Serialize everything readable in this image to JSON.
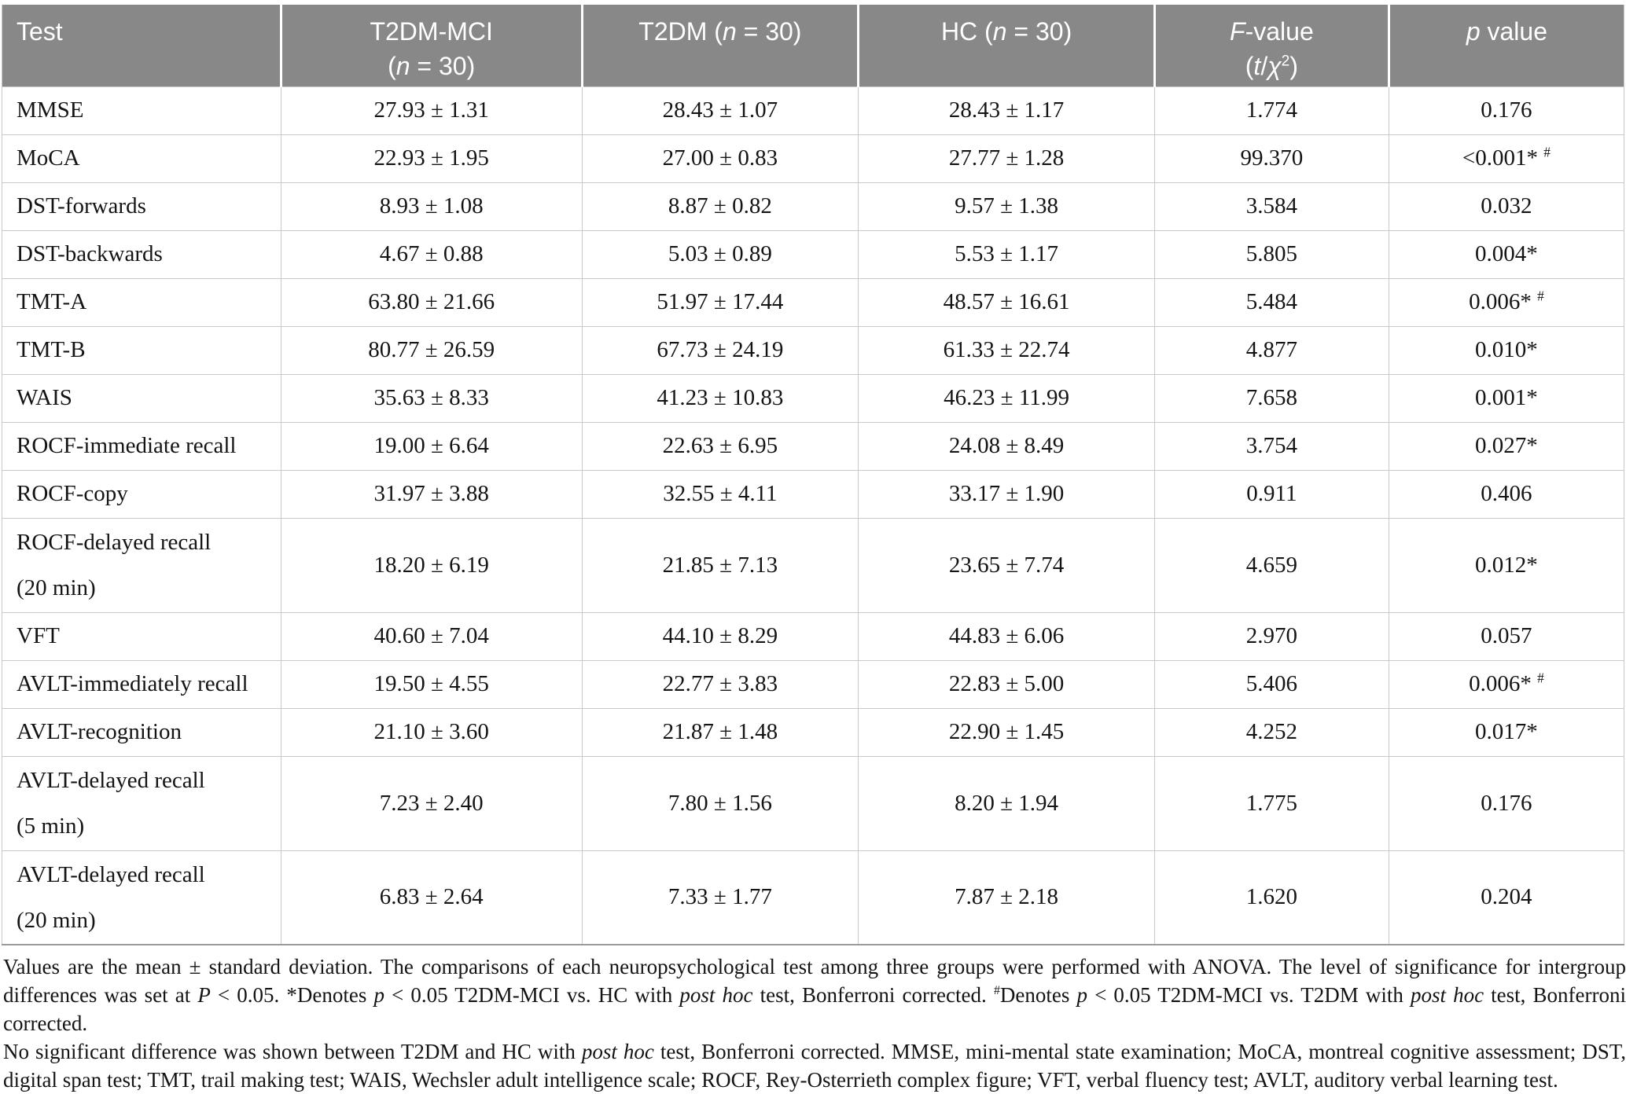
{
  "colors": {
    "header_bg": "#888888",
    "grid_line": "#c9c9c9",
    "header_text": "#ffffff",
    "body_text": "#141414"
  },
  "table": {
    "header": {
      "cells": [
        [
          {
            "t": "Test"
          }
        ],
        [
          {
            "t": "T2DM-MCI"
          },
          {
            "br": true
          },
          {
            "t": "("
          },
          {
            "i": "n"
          },
          {
            "t": " = 30)"
          }
        ],
        [
          {
            "t": "T2DM ("
          },
          {
            "i": "n"
          },
          {
            "t": " = 30)"
          }
        ],
        [
          {
            "t": "HC ("
          },
          {
            "i": "n"
          },
          {
            "t": " = 30)"
          }
        ],
        [
          {
            "i": "F"
          },
          {
            "t": "-value"
          },
          {
            "br": true
          },
          {
            "t": "("
          },
          {
            "i": "t"
          },
          {
            "t": "/"
          },
          {
            "i": "χ"
          },
          {
            "sup": "2"
          },
          {
            "t": ")"
          }
        ],
        [
          {
            "i": "p"
          },
          {
            "t": " value"
          }
        ]
      ]
    },
    "rows": [
      {
        "h": 1,
        "cells": [
          [
            {
              "t": "MMSE"
            }
          ],
          [
            {
              "t": "27.93 ± 1.31"
            }
          ],
          [
            {
              "t": "28.43 ± 1.07"
            }
          ],
          [
            {
              "t": "28.43 ± 1.17"
            }
          ],
          [
            {
              "t": "1.774"
            }
          ],
          [
            {
              "t": "0.176"
            }
          ]
        ]
      },
      {
        "h": 1,
        "cells": [
          [
            {
              "t": "MoCA"
            }
          ],
          [
            {
              "t": "22.93 ± 1.95"
            }
          ],
          [
            {
              "t": "27.00 ± 0.83"
            }
          ],
          [
            {
              "t": "27.77 ± 1.28"
            }
          ],
          [
            {
              "t": "99.370"
            }
          ],
          [
            {
              "t": "<0.001* "
            },
            {
              "sup": "#"
            }
          ]
        ]
      },
      {
        "h": 1,
        "cells": [
          [
            {
              "t": "DST-forwards"
            }
          ],
          [
            {
              "t": "8.93 ± 1.08"
            }
          ],
          [
            {
              "t": "8.87 ± 0.82"
            }
          ],
          [
            {
              "t": "9.57 ± 1.38"
            }
          ],
          [
            {
              "t": "3.584"
            }
          ],
          [
            {
              "t": "0.032"
            }
          ]
        ]
      },
      {
        "h": 1,
        "cells": [
          [
            {
              "t": "DST-backwards"
            }
          ],
          [
            {
              "t": "4.67 ± 0.88"
            }
          ],
          [
            {
              "t": "5.03 ± 0.89"
            }
          ],
          [
            {
              "t": "5.53 ± 1.17"
            }
          ],
          [
            {
              "t": "5.805"
            }
          ],
          [
            {
              "t": "0.004*"
            }
          ]
        ]
      },
      {
        "h": 1,
        "cells": [
          [
            {
              "t": "TMT-A"
            }
          ],
          [
            {
              "t": "63.80 ± 21.66"
            }
          ],
          [
            {
              "t": "51.97 ± 17.44"
            }
          ],
          [
            {
              "t": "48.57 ± 16.61"
            }
          ],
          [
            {
              "t": "5.484"
            }
          ],
          [
            {
              "t": "0.006* "
            },
            {
              "sup": "#"
            }
          ]
        ]
      },
      {
        "h": 1,
        "cells": [
          [
            {
              "t": "TMT-B"
            }
          ],
          [
            {
              "t": "80.77 ± 26.59"
            }
          ],
          [
            {
              "t": "67.73 ± 24.19"
            }
          ],
          [
            {
              "t": "61.33 ± 22.74"
            }
          ],
          [
            {
              "t": "4.877"
            }
          ],
          [
            {
              "t": "0.010*"
            }
          ]
        ]
      },
      {
        "h": 1,
        "cells": [
          [
            {
              "t": "WAIS"
            }
          ],
          [
            {
              "t": "35.63 ± 8.33"
            }
          ],
          [
            {
              "t": "41.23 ± 10.83"
            }
          ],
          [
            {
              "t": "46.23 ± 11.99"
            }
          ],
          [
            {
              "t": "7.658"
            }
          ],
          [
            {
              "t": "0.001*"
            }
          ]
        ]
      },
      {
        "h": 1,
        "cells": [
          [
            {
              "t": "ROCF-immediate recall"
            }
          ],
          [
            {
              "t": "19.00 ± 6.64"
            }
          ],
          [
            {
              "t": "22.63 ± 6.95"
            }
          ],
          [
            {
              "t": "24.08 ± 8.49"
            }
          ],
          [
            {
              "t": "3.754"
            }
          ],
          [
            {
              "t": "0.027*"
            }
          ]
        ]
      },
      {
        "h": 1,
        "cells": [
          [
            {
              "t": "ROCF-copy"
            }
          ],
          [
            {
              "t": "31.97 ± 3.88"
            }
          ],
          [
            {
              "t": "32.55 ± 4.11"
            }
          ],
          [
            {
              "t": "33.17 ± 1.90"
            }
          ],
          [
            {
              "t": "0.911"
            }
          ],
          [
            {
              "t": "0.406"
            }
          ]
        ]
      },
      {
        "h": 2,
        "cells": [
          [
            {
              "t": "ROCF-delayed recall"
            },
            {
              "br": true
            },
            {
              "t": "(20 min)"
            }
          ],
          [
            {
              "t": "18.20 ± 6.19"
            }
          ],
          [
            {
              "t": "21.85 ± 7.13"
            }
          ],
          [
            {
              "t": "23.65 ± 7.74"
            }
          ],
          [
            {
              "t": "4.659"
            }
          ],
          [
            {
              "t": "0.012*"
            }
          ]
        ]
      },
      {
        "h": 1,
        "cells": [
          [
            {
              "t": "VFT"
            }
          ],
          [
            {
              "t": "40.60 ± 7.04"
            }
          ],
          [
            {
              "t": "44.10 ± 8.29"
            }
          ],
          [
            {
              "t": "44.83 ± 6.06"
            }
          ],
          [
            {
              "t": "2.970"
            }
          ],
          [
            {
              "t": "0.057"
            }
          ]
        ]
      },
      {
        "h": 1,
        "cells": [
          [
            {
              "t": "AVLT-immediately recall"
            }
          ],
          [
            {
              "t": "19.50 ± 4.55"
            }
          ],
          [
            {
              "t": "22.77 ± 3.83"
            }
          ],
          [
            {
              "t": "22.83 ± 5.00"
            }
          ],
          [
            {
              "t": "5.406"
            }
          ],
          [
            {
              "t": "0.006* "
            },
            {
              "sup": "#"
            }
          ]
        ]
      },
      {
        "h": 1,
        "cells": [
          [
            {
              "t": "AVLT-recognition"
            }
          ],
          [
            {
              "t": "21.10 ± 3.60"
            }
          ],
          [
            {
              "t": "21.87 ± 1.48"
            }
          ],
          [
            {
              "t": "22.90 ± 1.45"
            }
          ],
          [
            {
              "t": "4.252"
            }
          ],
          [
            {
              "t": "0.017*"
            }
          ]
        ]
      },
      {
        "h": 2,
        "cells": [
          [
            {
              "t": "AVLT-delayed recall"
            },
            {
              "br": true
            },
            {
              "t": "(5 min)"
            }
          ],
          [
            {
              "t": "7.23 ± 2.40"
            }
          ],
          [
            {
              "t": "7.80 ± 1.56"
            }
          ],
          [
            {
              "t": "8.20 ± 1.94"
            }
          ],
          [
            {
              "t": "1.775"
            }
          ],
          [
            {
              "t": "0.176"
            }
          ]
        ]
      },
      {
        "h": 2,
        "cells": [
          [
            {
              "t": "AVLT-delayed recall"
            },
            {
              "br": true
            },
            {
              "t": "(20 min)"
            }
          ],
          [
            {
              "t": "6.83 ± 2.64"
            }
          ],
          [
            {
              "t": "7.33 ± 1.77"
            }
          ],
          [
            {
              "t": "7.87 ± 2.18"
            }
          ],
          [
            {
              "t": "1.620"
            }
          ],
          [
            {
              "t": "0.204"
            }
          ]
        ]
      }
    ]
  },
  "footnote": {
    "lines": [
      [
        {
          "t": "Values are the mean ± standard deviation. The comparisons of each neuropsychological test among three groups were performed with ANOVA. The level of significance for intergroup"
        }
      ],
      [
        {
          "t": "differences was set at "
        },
        {
          "i": "P"
        },
        {
          "t": " < 0.05. *Denotes "
        },
        {
          "i": "p"
        },
        {
          "t": " < 0.05 T2DM-MCI vs. HC with "
        },
        {
          "i": "post hoc"
        },
        {
          "t": " test, Bonferroni corrected. "
        },
        {
          "sup": "#"
        },
        {
          "t": "Denotes "
        },
        {
          "i": "p"
        },
        {
          "t": " < 0.05 T2DM-MCI vs. T2DM with "
        },
        {
          "i": "post hoc"
        },
        {
          "t": " test, Bonferroni corrected."
        }
      ],
      [
        {
          "t": "No significant difference was shown between T2DM and HC with "
        },
        {
          "i": "post hoc"
        },
        {
          "t": " test, Bonferroni corrected. MMSE, mini-mental state examination; MoCA, montreal cognitive assessment; DST,"
        }
      ],
      [
        {
          "t": "digital span test; TMT, trail making test; WAIS, Wechsler adult intelligence scale; ROCF, Rey-Osterrieth complex figure; VFT, verbal fluency test; AVLT, auditory verbal learning test."
        }
      ]
    ]
  }
}
